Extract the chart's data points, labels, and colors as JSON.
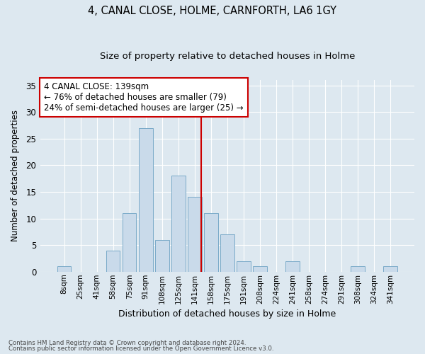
{
  "title": "4, CANAL CLOSE, HOLME, CARNFORTH, LA6 1GY",
  "subtitle": "Size of property relative to detached houses in Holme",
  "xlabel": "Distribution of detached houses by size in Holme",
  "ylabel": "Number of detached properties",
  "categories": [
    "8sqm",
    "25sqm",
    "41sqm",
    "58sqm",
    "75sqm",
    "91sqm",
    "108sqm",
    "125sqm",
    "141sqm",
    "158sqm",
    "175sqm",
    "191sqm",
    "208sqm",
    "224sqm",
    "241sqm",
    "258sqm",
    "274sqm",
    "291sqm",
    "308sqm",
    "324sqm",
    "341sqm"
  ],
  "values": [
    1,
    0,
    0,
    4,
    11,
    27,
    6,
    18,
    14,
    11,
    7,
    2,
    1,
    0,
    2,
    0,
    0,
    0,
    1,
    0,
    1
  ],
  "bar_color": "#c9daea",
  "bar_edgecolor": "#7aaac8",
  "reference_line_color": "#cc0000",
  "reference_line_x": 8.42,
  "annotation_text": "4 CANAL CLOSE: 139sqm\n← 76% of detached houses are smaller (79)\n24% of semi-detached houses are larger (25) →",
  "annotation_box_facecolor": "#ffffff",
  "annotation_box_edgecolor": "#cc0000",
  "ylim": [
    0,
    36
  ],
  "yticks": [
    0,
    5,
    10,
    15,
    20,
    25,
    30,
    35
  ],
  "background_color": "#dde8f0",
  "grid_color": "#ffffff",
  "footnote1": "Contains HM Land Registry data © Crown copyright and database right 2024.",
  "footnote2": "Contains public sector information licensed under the Open Government Licence v3.0."
}
